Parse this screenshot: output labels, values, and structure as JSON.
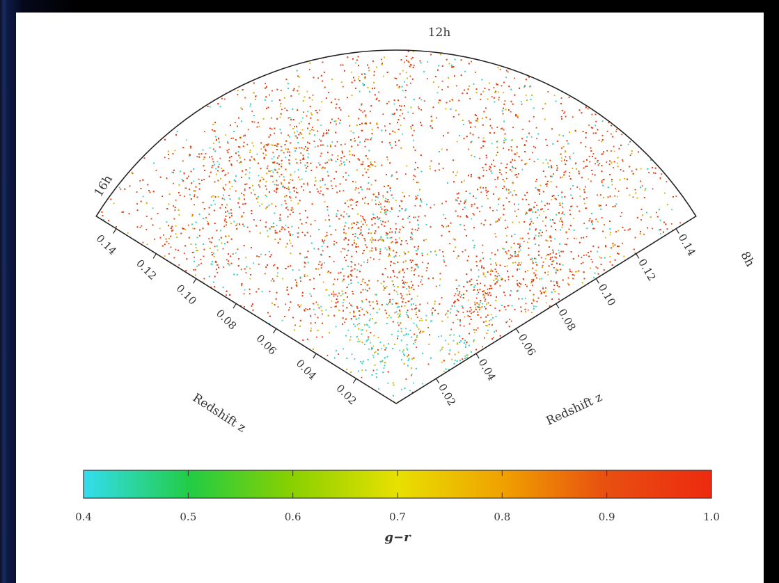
{
  "chart_data": {
    "type": "scatter",
    "projection": "polar wedge (right ascension vs. redshift)",
    "angle_labels": [
      "12h",
      "16h",
      "8h"
    ],
    "redshift_ticks_left": [
      "0.02",
      "0.04",
      "0.06",
      "0.08",
      "0.10",
      "0.12",
      "0.14"
    ],
    "redshift_ticks_right": [
      "0.02",
      "0.04",
      "0.06",
      "0.08",
      "0.10",
      "0.12",
      "0.14"
    ],
    "left_axis_label": "Redshift z",
    "right_axis_label": "Redshift z",
    "redshift_range": [
      0,
      0.15
    ],
    "colorbar": {
      "label": "g−r",
      "ticks": [
        "0.4",
        "0.5",
        "0.6",
        "0.7",
        "0.8",
        "0.9",
        "1.0"
      ],
      "range": [
        0.4,
        1.0
      ],
      "colors": [
        "#33ddee",
        "#22cc44",
        "#88d000",
        "#e8e000",
        "#f0a000",
        "#e85010",
        "#ee2a10"
      ]
    },
    "series": [
      {
        "name": "",
        "color_range": "cyan–green (blue galaxies, g−r ≈ 0.4–0.7)",
        "color": "#2ed3c8"
      },
      {
        "name": "",
        "color_range": "yellow–orange",
        "color": "#d9b300"
      },
      {
        "name": "",
        "color_range": "red (red galaxies, g−r ≈ 0.9–1.0)",
        "color": "#e8400f"
      }
    ]
  }
}
